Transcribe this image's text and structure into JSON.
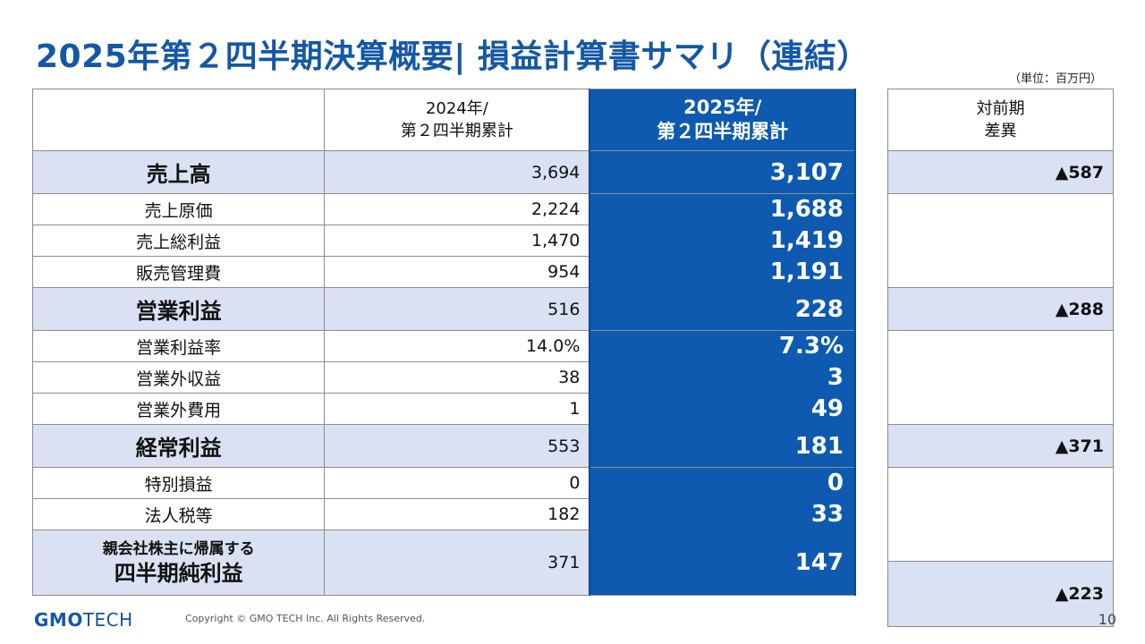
{
  "title": "2025年第２四半期決算概要| 損益計算書サマリ（連結）",
  "unit": "（単位：百万円）",
  "headers": {
    "prev_line1": "2024年/",
    "prev_line2": "第２四半期累計",
    "curr_line1": "2025年/",
    "curr_line2": "第２四半期累計",
    "diff_line1": "対前期",
    "diff_line2": "差異"
  },
  "rows": [
    {
      "label": "売上高",
      "prev": "3,694",
      "curr": "3,107",
      "diff": "▲587"
    },
    {
      "label": "売上原価",
      "prev": "2,224",
      "curr": "1,688"
    },
    {
      "label": "売上総利益",
      "prev": "1,470",
      "curr": "1,419"
    },
    {
      "label": "販売管理費",
      "prev": "954",
      "curr": "1,191"
    },
    {
      "label": "営業利益",
      "prev": "516",
      "curr": "228",
      "diff": "▲288"
    },
    {
      "label": "営業利益率",
      "prev": "14.0%",
      "curr": "7.3%"
    },
    {
      "label": "営業外収益",
      "prev": "38",
      "curr": "3"
    },
    {
      "label": "営業外費用",
      "prev": "1",
      "curr": "49"
    },
    {
      "label": "経常利益",
      "prev": "553",
      "curr": "181",
      "diff": "▲371"
    },
    {
      "label": "特別損益",
      "prev": "0",
      "curr": "0"
    },
    {
      "label": "法人税等",
      "prev": "182",
      "curr": "33"
    },
    {
      "label_line1": "親会社株主に帰属する",
      "label_line2": "四半期純利益",
      "prev": "371",
      "curr": "147",
      "diff": "▲223"
    }
  ],
  "footer": {
    "logo_gmo": "GMO",
    "logo_tech": "TECH",
    "copyright": "Copyright © GMO TECH Inc. All Rights Reserved.",
    "page": "10"
  },
  "colors": {
    "title": "#1457a6",
    "current_column": "#0d5ab0",
    "major_row_bg": "#d9e1f2"
  }
}
